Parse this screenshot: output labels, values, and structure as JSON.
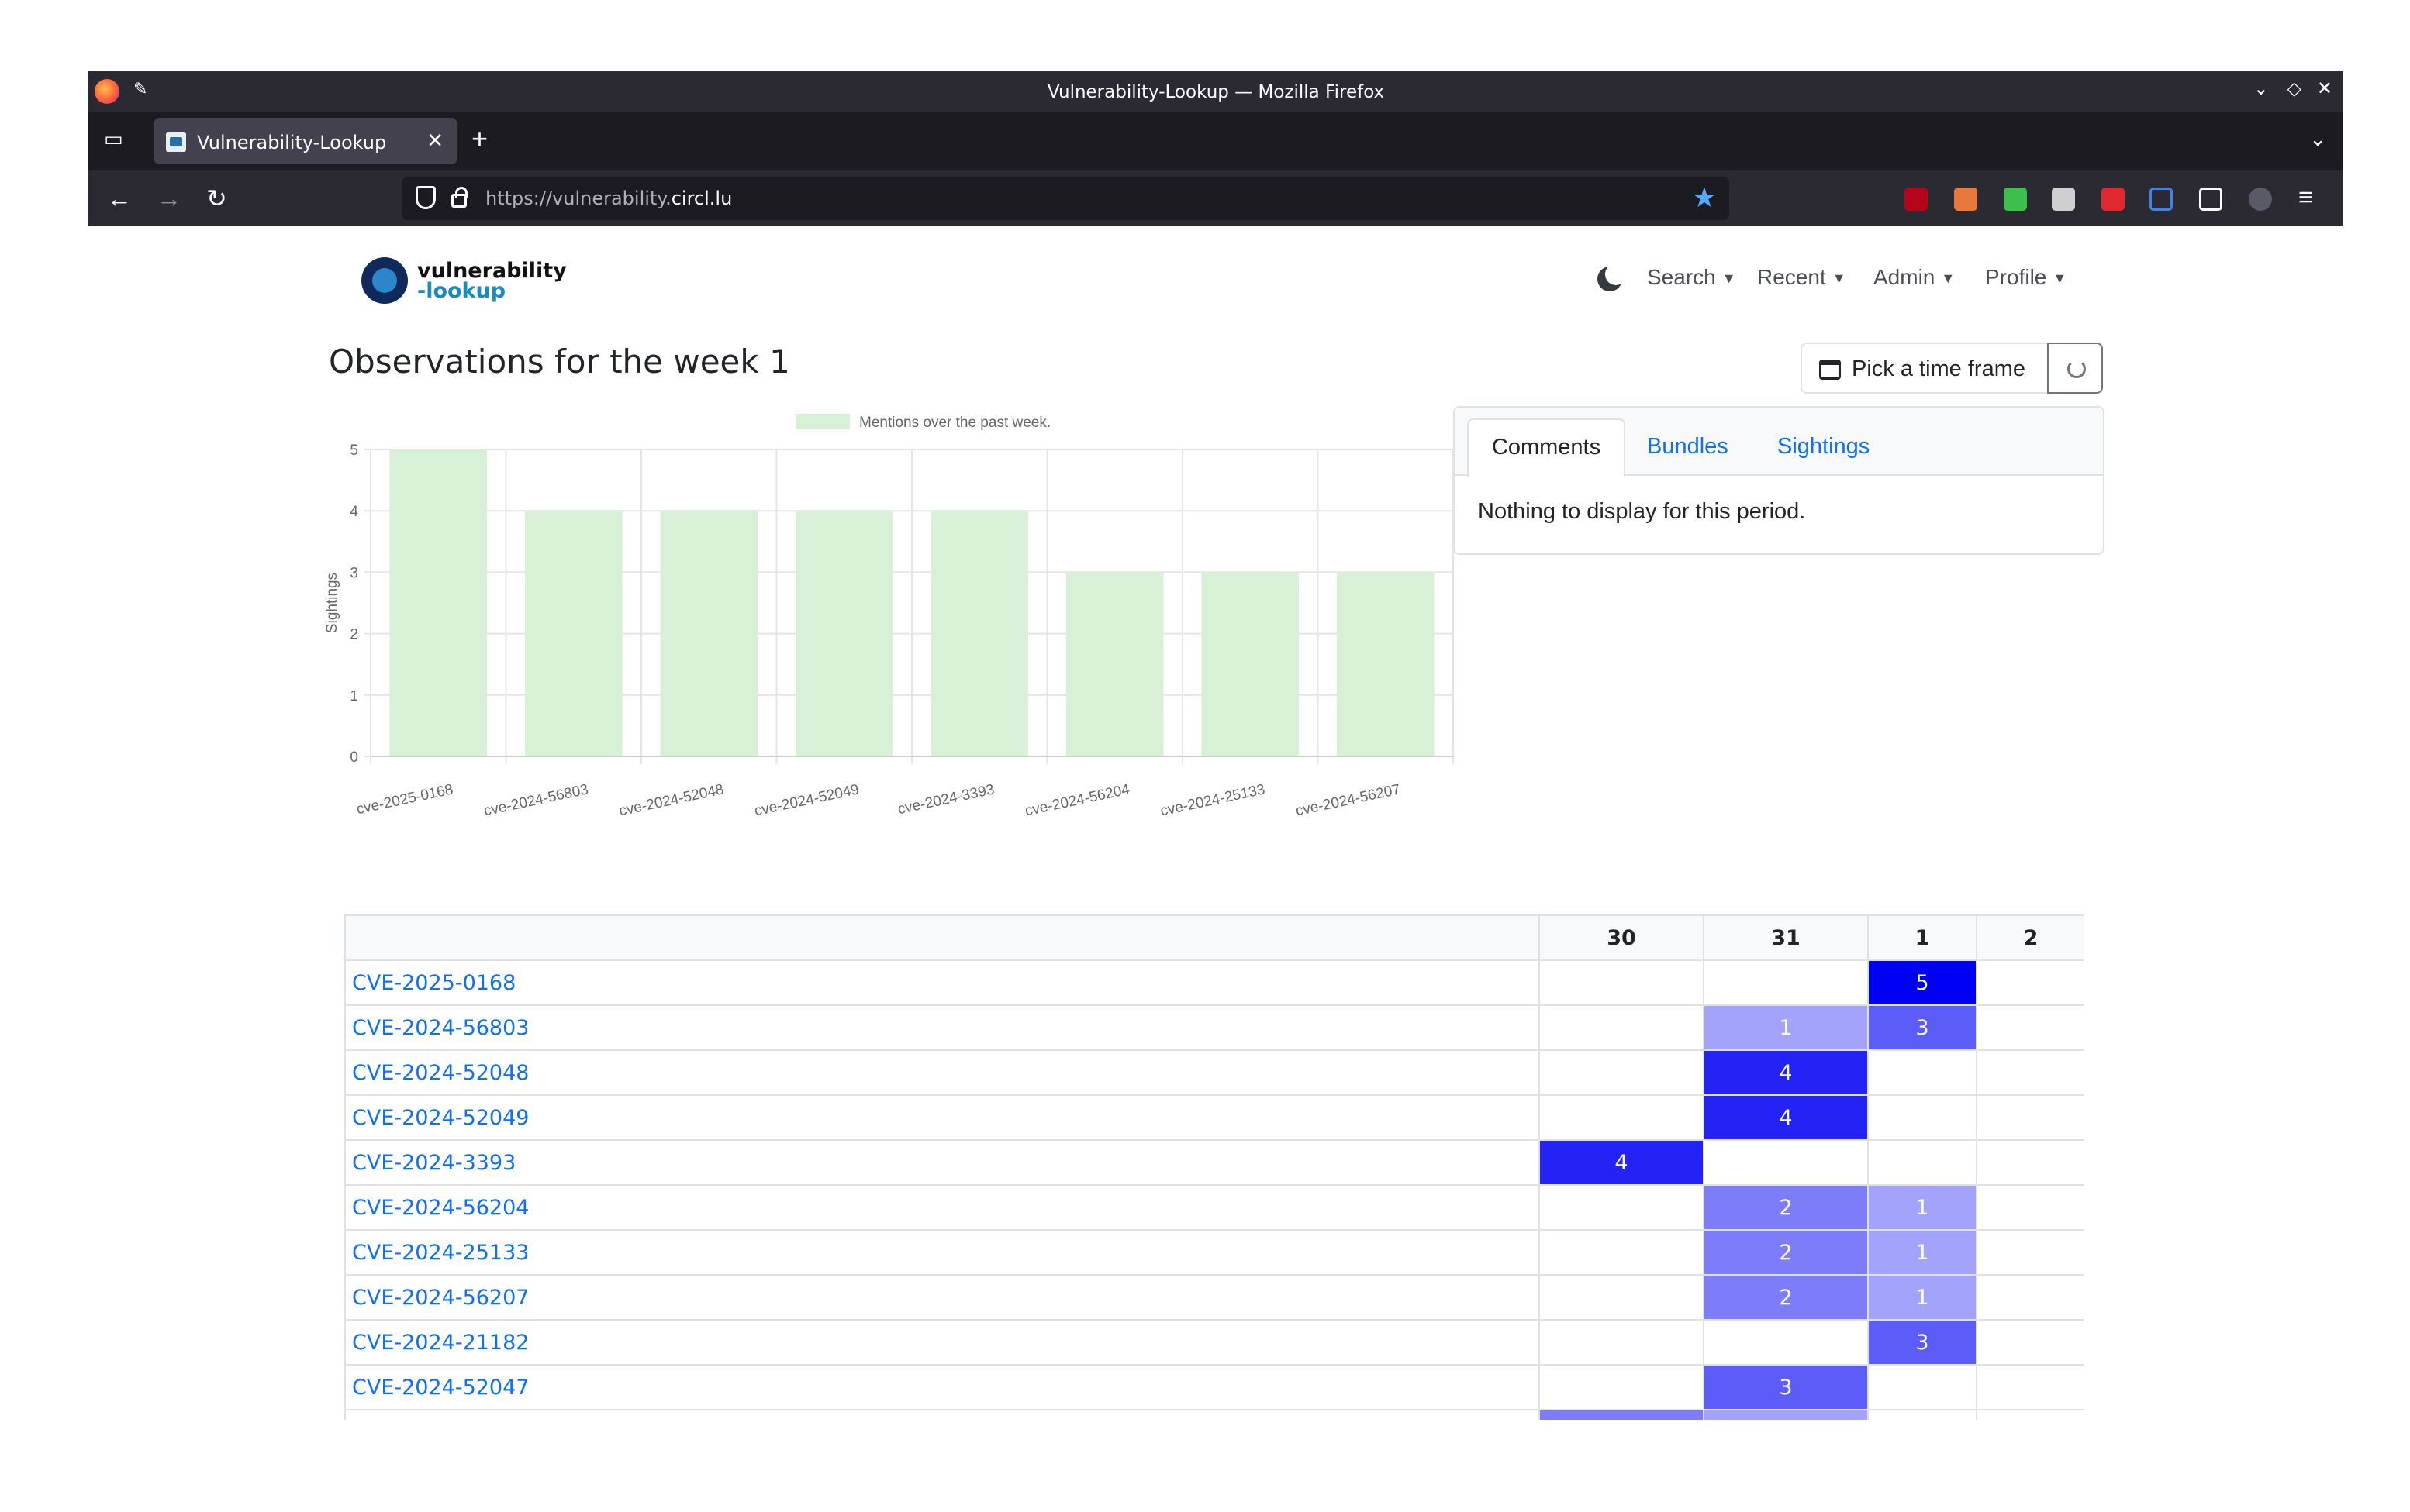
{
  "browser": {
    "window_title": "Vulnerability-Lookup — Mozilla Firefox",
    "tab_label": "Vulnerability-Lookup",
    "url_prefix": "https://vulnerability.",
    "url_domain": "circl.lu"
  },
  "site": {
    "logo_line1": "vulnerability",
    "logo_line2": "-lookup",
    "nav": [
      "Search",
      "Recent",
      "Admin",
      "Profile"
    ]
  },
  "page": {
    "title": "Observations for the week 1",
    "timeframe_button": "Pick a time frame"
  },
  "panel": {
    "tabs": [
      "Comments",
      "Bundles",
      "Sightings"
    ],
    "active_tab": "Comments",
    "message": "Nothing to display for this period."
  },
  "chart_data": {
    "type": "bar",
    "legend": "Mentions over the past week.",
    "ylabel": "Sightings",
    "ylim": [
      0,
      5
    ],
    "yticks": [
      0,
      1,
      2,
      3,
      4,
      5
    ],
    "categories": [
      "cve-2025-0168",
      "cve-2024-56803",
      "cve-2024-52048",
      "cve-2024-52049",
      "cve-2024-3393",
      "cve-2024-56204",
      "cve-2024-25133",
      "cve-2024-56207"
    ],
    "values": [
      5,
      4,
      4,
      4,
      4,
      3,
      3,
      3
    ],
    "bar_color": "#d8f0d6",
    "legend_color": "#d8f0d6"
  },
  "heatmap": {
    "columns": [
      "30",
      "31",
      "1",
      "2"
    ],
    "rows": [
      {
        "cve": "CVE-2025-0168",
        "cells": [
          "",
          "",
          "5",
          ""
        ]
      },
      {
        "cve": "CVE-2024-56803",
        "cells": [
          "",
          "1",
          "3",
          ""
        ]
      },
      {
        "cve": "CVE-2024-52048",
        "cells": [
          "",
          "4",
          "",
          ""
        ]
      },
      {
        "cve": "CVE-2024-52049",
        "cells": [
          "",
          "4",
          "",
          ""
        ]
      },
      {
        "cve": "CVE-2024-3393",
        "cells": [
          "4",
          "",
          "",
          ""
        ]
      },
      {
        "cve": "CVE-2024-56204",
        "cells": [
          "",
          "2",
          "1",
          ""
        ]
      },
      {
        "cve": "CVE-2024-25133",
        "cells": [
          "",
          "2",
          "1",
          ""
        ]
      },
      {
        "cve": "CVE-2024-56207",
        "cells": [
          "",
          "2",
          "1",
          ""
        ]
      },
      {
        "cve": "CVE-2024-21182",
        "cells": [
          "",
          "",
          "3",
          ""
        ]
      },
      {
        "cve": "CVE-2024-52047",
        "cells": [
          "",
          "3",
          "",
          ""
        ]
      }
    ],
    "color_scale": {
      "1": "#a3a3fb",
      "2": "#7d7dfa",
      "3": "#5c5cf8",
      "4": "#2323f6",
      "5": "#0000f5"
    }
  }
}
